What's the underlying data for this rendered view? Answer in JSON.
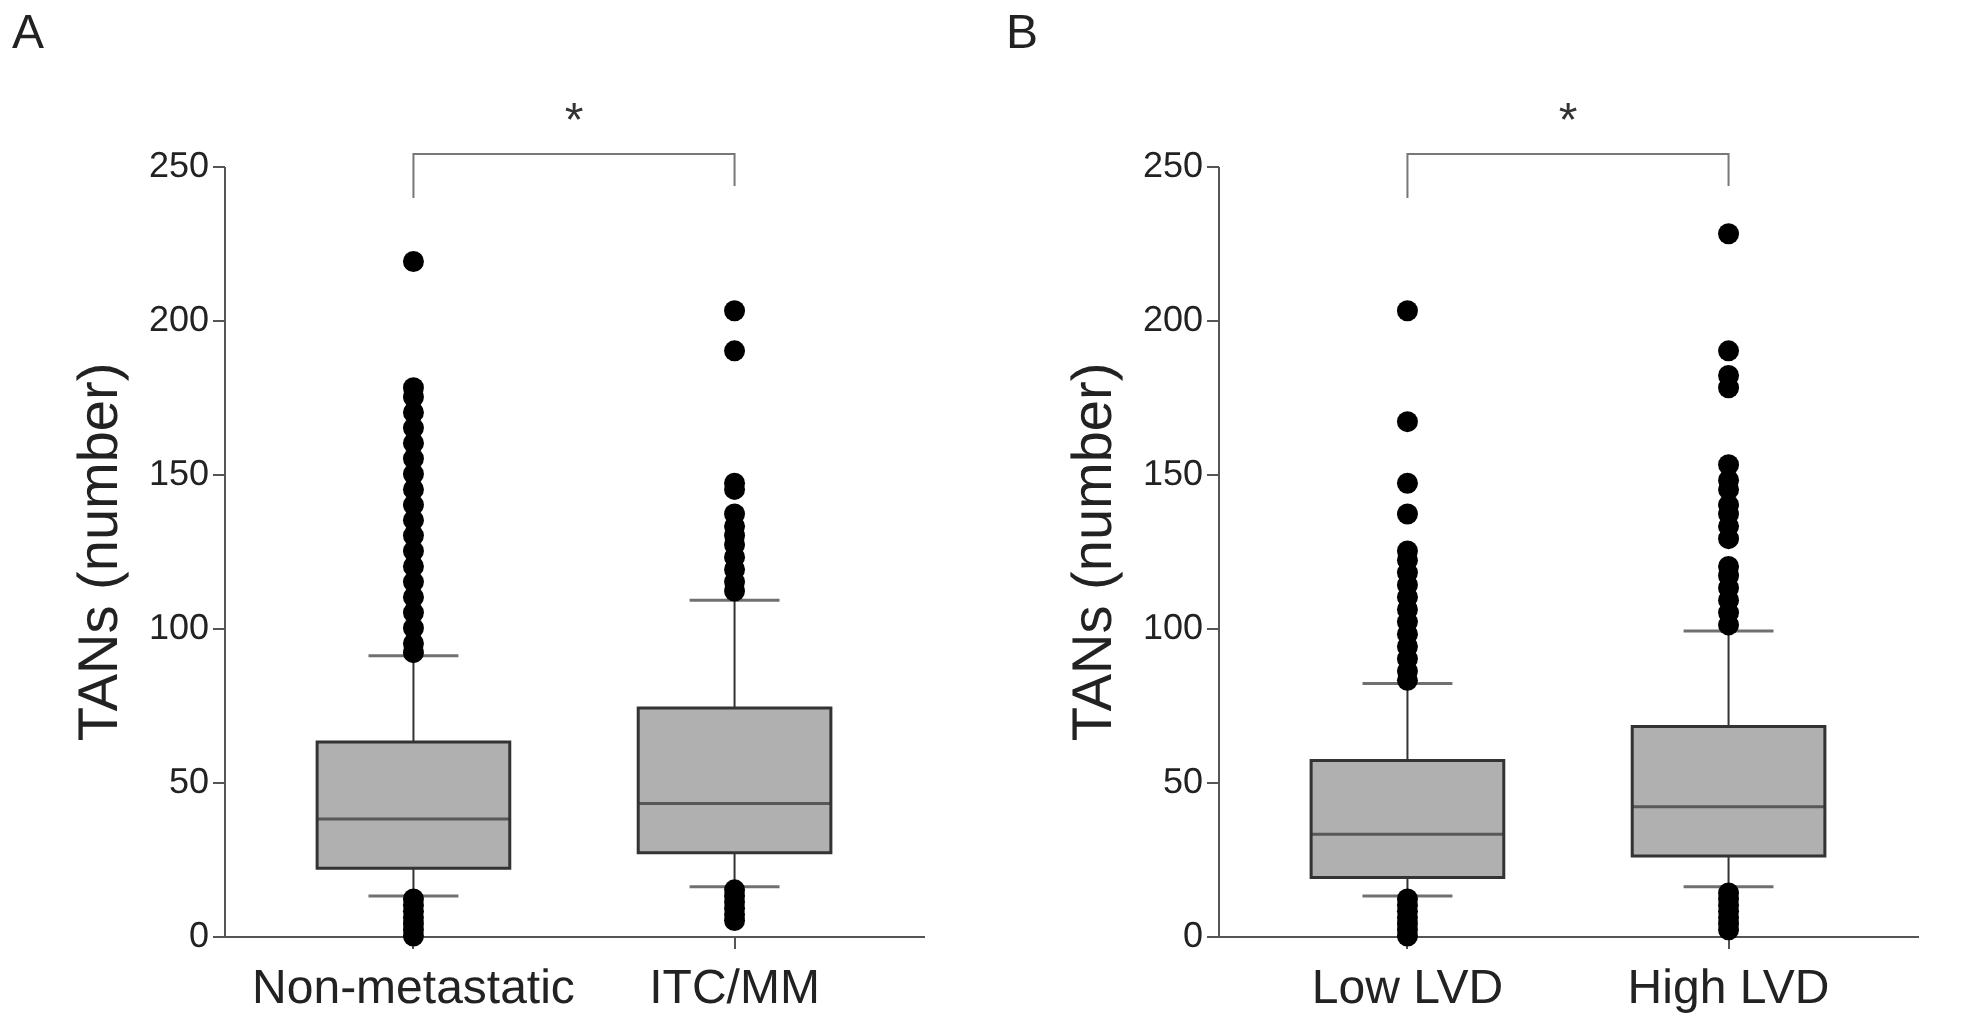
{
  "chart_data": [
    {
      "type": "box",
      "title": "A",
      "ylabel": "TANs (number)",
      "categories": [
        "Non-metastatic",
        "ITC/MM"
      ],
      "color": "#b0b0b0",
      "ylim": [
        0,
        250
      ],
      "yticks": [
        0,
        50,
        100,
        150,
        200,
        250
      ],
      "grid": false,
      "annotations": [
        "*"
      ],
      "boxes": [
        {
          "low": 13,
          "q1": 22,
          "median": 38,
          "q3": 63,
          "high": 91,
          "outliers": [
            0,
            2,
            4,
            6,
            8,
            10,
            12,
            92,
            95,
            100,
            105,
            110,
            115,
            120,
            125,
            130,
            135,
            140,
            145,
            150,
            155,
            160,
            165,
            170,
            175,
            178,
            219
          ]
        },
        {
          "low": 16,
          "q1": 27,
          "median": 43,
          "q3": 74,
          "high": 109,
          "outliers": [
            5,
            7,
            9,
            11,
            13,
            15,
            112,
            115,
            119,
            123,
            127,
            130,
            133,
            137,
            145,
            147,
            190,
            203
          ]
        }
      ]
    },
    {
      "type": "box",
      "title": "B",
      "ylabel": "TANs (number)",
      "categories": [
        "Low LVD",
        "High LVD"
      ],
      "color": "#b0b0b0",
      "ylim": [
        0,
        250
      ],
      "yticks": [
        0,
        50,
        100,
        150,
        200,
        250
      ],
      "grid": false,
      "annotations": [
        "*"
      ],
      "boxes": [
        {
          "low": 13,
          "q1": 19,
          "median": 33,
          "q3": 57,
          "high": 82,
          "outliers": [
            0,
            2,
            4,
            6,
            8,
            10,
            12,
            83,
            86,
            90,
            94,
            98,
            102,
            106,
            110,
            114,
            118,
            122,
            125,
            137,
            147,
            167,
            203
          ]
        },
        {
          "low": 16,
          "q1": 26,
          "median": 42,
          "q3": 68,
          "high": 99,
          "outliers": [
            2,
            4,
            6,
            8,
            10,
            12,
            14,
            101,
            105,
            109,
            113,
            117,
            120,
            129,
            133,
            137,
            140,
            145,
            148,
            153,
            178,
            182,
            190,
            228
          ]
        }
      ]
    }
  ]
}
